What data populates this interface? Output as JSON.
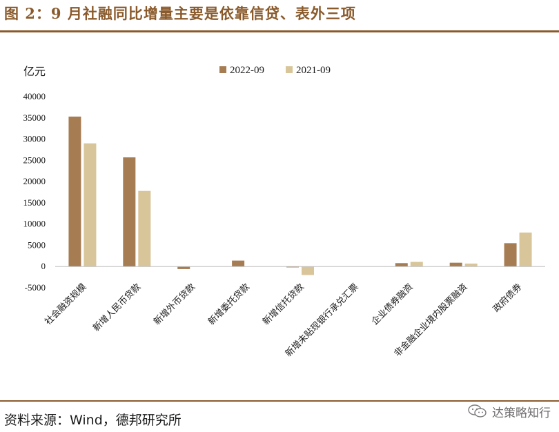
{
  "figure": {
    "title": "图 2：9 月社融同比增量主要是依靠信贷、表外三项",
    "source": "资料来源：Wind，德邦研究所",
    "watermark": "达策略知行",
    "watermark_icon": "wechat-icon"
  },
  "colors": {
    "series_2022": "#a67c52",
    "series_2021": "#d8c59a",
    "accent": "#8a5a2b"
  },
  "chart_data": {
    "type": "bar",
    "ylabel": "亿元",
    "ylim": [
      -5000,
      40000
    ],
    "yticks": [
      -5000,
      0,
      5000,
      10000,
      15000,
      20000,
      25000,
      30000,
      35000,
      40000
    ],
    "grid": false,
    "legend_position": "top-center",
    "categories": [
      "社会融资规模",
      "新增人民币贷款",
      "新增外币贷款",
      "新增委托贷款",
      "新增信托贷款",
      "新增未贴现银行承兑汇票",
      "企业债券融资",
      "非金融企业境内股票融资",
      "政府债券"
    ],
    "series": [
      {
        "name": "2022-09",
        "color": "#a67c52",
        "values": [
          35300,
          25700,
          -600,
          1400,
          -200,
          0,
          800,
          900,
          5500
        ]
      },
      {
        "name": "2021-09",
        "color": "#d8c59a",
        "values": [
          29000,
          17800,
          0,
          0,
          -2000,
          0,
          1100,
          700,
          8000
        ]
      }
    ]
  }
}
